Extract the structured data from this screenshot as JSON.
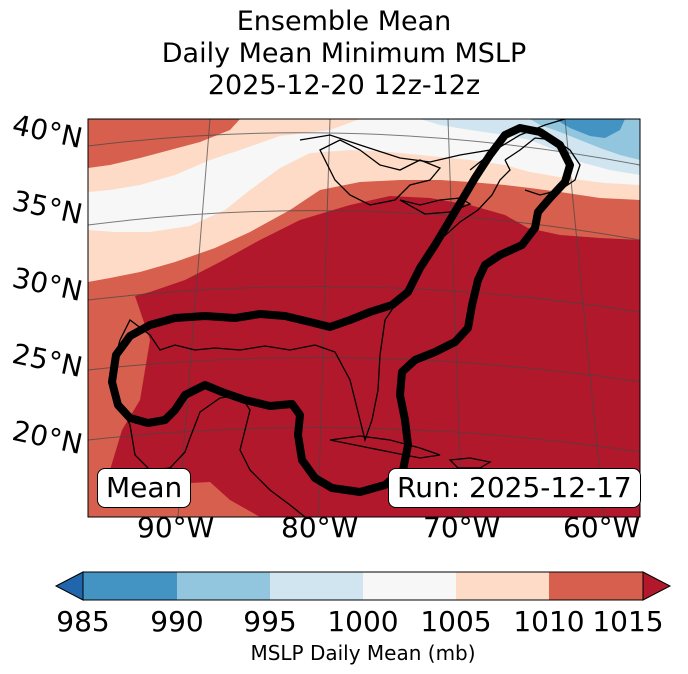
{
  "title": {
    "line1": "Ensemble Mean",
    "line2": "Daily Mean Minimum MSLP",
    "line3": "2025-12-20 12z-12z"
  },
  "map": {
    "lat_labels": [
      "40°N",
      "35°N",
      "30°N",
      "25°N",
      "20°N"
    ],
    "lon_labels": [
      "90°W",
      "80°W",
      "70°W",
      "60°W"
    ],
    "mean_label": "Mean",
    "run_label": "Run: 2025-12-17"
  },
  "colorbar": {
    "ticks": [
      "985",
      "990",
      "995",
      "1000",
      "1005",
      "1010",
      "1015"
    ],
    "label": "MSLP Daily Mean (mb)",
    "colors": [
      "#2166ac",
      "#4393c3",
      "#92c5de",
      "#d1e5f0",
      "#f7f7f7",
      "#fddbc7",
      "#d6604d",
      "#b2182b"
    ]
  },
  "colors": {
    "c1015": "#b2182b",
    "c1010": "#d6604d",
    "c1005": "#fddbc7",
    "c1000": "#f7f7f7",
    "c995": "#d1e5f0",
    "c990": "#92c5de",
    "c985": "#4393c3",
    "contour": "#000000"
  }
}
